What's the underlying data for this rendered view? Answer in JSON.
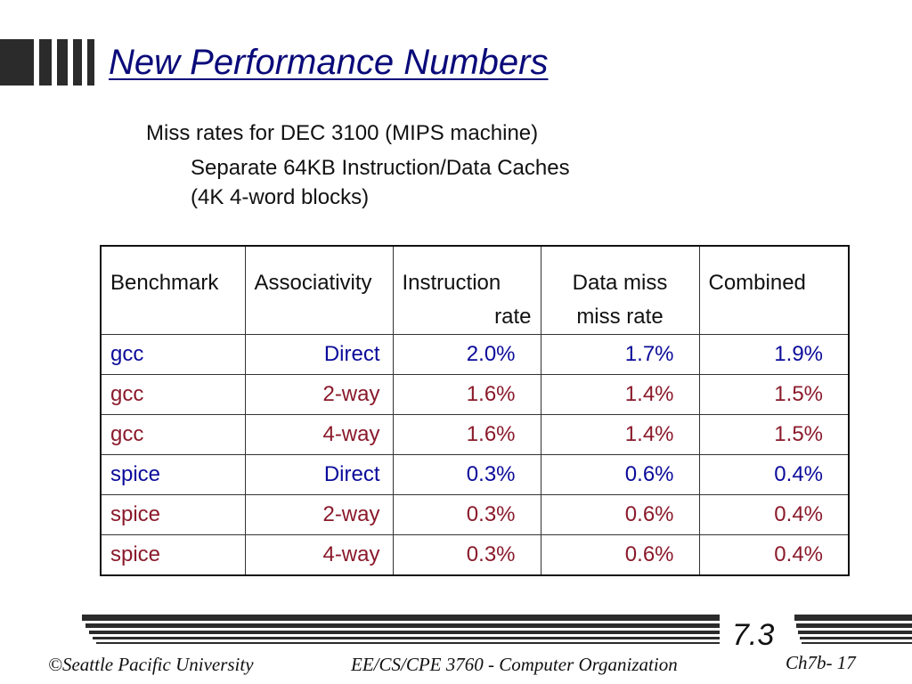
{
  "slide": {
    "title": "New Performance Numbers",
    "subtitle": "Miss rates for DEC 3100 (MIPS machine)",
    "detail_line1": "Separate 64KB Instruction/Data Caches",
    "detail_line2": "(4K 4-word blocks)"
  },
  "table": {
    "headers": {
      "benchmark": "Benchmark",
      "associativity": "Associativity",
      "instruction_1": "Instruction",
      "instruction_2": "rate",
      "data_1": "Data miss",
      "data_2": "miss rate",
      "combined": "Combined"
    },
    "rows": [
      {
        "benchmark": "gcc",
        "associativity": "Direct",
        "instruction": "2.0%",
        "data": "1.7%",
        "combined": "1.9%"
      },
      {
        "benchmark": "gcc",
        "associativity": "2-way",
        "instruction": "1.6%",
        "data": "1.4%",
        "combined": "1.5%"
      },
      {
        "benchmark": "gcc",
        "associativity": "4-way",
        "instruction": "1.6%",
        "data": "1.4%",
        "combined": "1.5%"
      },
      {
        "benchmark": "spice",
        "associativity": "Direct",
        "instruction": "0.3%",
        "data": "0.6%",
        "combined": "0.4%"
      },
      {
        "benchmark": "spice",
        "associativity": "2-way",
        "instruction": "0.3%",
        "data": "0.6%",
        "combined": "0.4%"
      },
      {
        "benchmark": "spice",
        "associativity": "4-way",
        "instruction": "0.3%",
        "data": "0.6%",
        "combined": "0.4%"
      }
    ]
  },
  "footer": {
    "section": "7.3",
    "copyright": "©Seattle Pacific University",
    "course": "EE/CS/CPE 3760 - Computer Organization",
    "page": "Ch7b- 17"
  },
  "colors": {
    "title": "#0a0a7a",
    "row_blue": "#0b0b9a",
    "row_red": "#8a1a2b"
  }
}
